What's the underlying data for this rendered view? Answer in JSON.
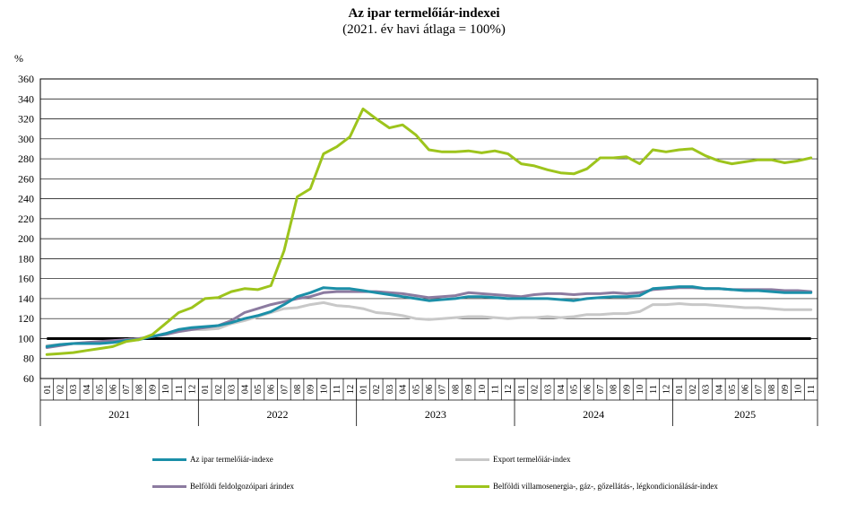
{
  "chart_data": {
    "type": "line",
    "title": "Az ipar termelőiár-indexei",
    "subtitle": "(2021. év havi átlaga = 100%)",
    "ylabel": "%",
    "ylim": [
      60,
      360
    ],
    "yticks": [
      "60",
      "80",
      "100",
      "120",
      "140",
      "160",
      "180",
      "200",
      "220",
      "240",
      "260",
      "280",
      "300",
      "320",
      "340",
      "360"
    ],
    "grid": true,
    "months": [
      "01",
      "02",
      "03",
      "04",
      "05",
      "06",
      "07",
      "08",
      "09",
      "10",
      "11",
      "12",
      "01",
      "02",
      "03",
      "04",
      "05",
      "06",
      "07",
      "08",
      "09",
      "10",
      "11",
      "12",
      "01",
      "02",
      "03",
      "04",
      "05",
      "06",
      "07",
      "08",
      "09",
      "10",
      "11",
      "12",
      "01",
      "02",
      "03",
      "04",
      "05",
      "06",
      "07",
      "08",
      "09",
      "10",
      "11",
      "12",
      "01",
      "02",
      "03",
      "04",
      "05",
      "06",
      "07",
      "08",
      "09",
      "10",
      "11"
    ],
    "years": [
      {
        "label": "2021",
        "start": 0,
        "end": 12
      },
      {
        "label": "2022",
        "start": 12,
        "end": 24
      },
      {
        "label": "2023",
        "start": 24,
        "end": 36
      },
      {
        "label": "2024",
        "start": 36,
        "end": 48
      },
      {
        "label": "2025",
        "start": 48,
        "end": 59
      }
    ],
    "reference_value": 100,
    "legend_position": "bottom",
    "series": [
      {
        "name": "Export termelőiár-index",
        "color": "#c8c8c8",
        "values": [
          93,
          94,
          95,
          96,
          96,
          97,
          99,
          100,
          102,
          105,
          107,
          109,
          109,
          110,
          115,
          118,
          122,
          126,
          130,
          131,
          134,
          136,
          133,
          132,
          130,
          126,
          125,
          123,
          120,
          119,
          120,
          121,
          122,
          122,
          121,
          120,
          121,
          121,
          122,
          121,
          122,
          124,
          124,
          125,
          125,
          127,
          134,
          134,
          135,
          134,
          134,
          133,
          132,
          131,
          131,
          130,
          129,
          129,
          129
        ]
      },
      {
        "name": "Belföldi feldolgozóipari árindex",
        "color": "#8c7ba0",
        "values": [
          91,
          93,
          95,
          96,
          97,
          98,
          99,
          100,
          102,
          104,
          107,
          109,
          111,
          113,
          118,
          126,
          130,
          134,
          137,
          140,
          142,
          146,
          147,
          147,
          147,
          147,
          146,
          145,
          143,
          141,
          142,
          143,
          146,
          145,
          144,
          143,
          142,
          144,
          145,
          145,
          144,
          145,
          145,
          146,
          145,
          146,
          149,
          150,
          151,
          151,
          150,
          150,
          149,
          149,
          149,
          149,
          148,
          148,
          147
        ]
      },
      {
        "name": "Az ipar termelőiár-indexe",
        "color": "#1b8fa8",
        "values": [
          92,
          94,
          95,
          95,
          95,
          96,
          98,
          99,
          102,
          105,
          109,
          111,
          112,
          113,
          116,
          120,
          123,
          127,
          134,
          142,
          146,
          151,
          150,
          150,
          148,
          146,
          144,
          142,
          140,
          138,
          139,
          140,
          142,
          142,
          141,
          140,
          140,
          140,
          140,
          139,
          138,
          140,
          141,
          142,
          142,
          143,
          150,
          151,
          152,
          152,
          150,
          150,
          149,
          148,
          148,
          147,
          146,
          146,
          146
        ]
      },
      {
        "name": "Belföldi villamosenergia-, gáz-, gőzellátás-, légkondicionálásár-index",
        "color": "#9dc41c",
        "values": [
          84,
          85,
          86,
          88,
          90,
          92,
          97,
          99,
          104,
          115,
          126,
          131,
          140,
          141,
          147,
          150,
          149,
          153,
          188,
          242,
          250,
          285,
          292,
          302,
          330,
          320,
          311,
          314,
          304,
          289,
          287,
          287,
          288,
          286,
          288,
          285,
          275,
          273,
          269,
          266,
          265,
          270,
          281,
          281,
          282,
          275,
          289,
          287,
          289,
          290,
          283,
          278,
          275,
          277,
          279,
          279,
          276,
          278,
          281
        ]
      }
    ]
  }
}
